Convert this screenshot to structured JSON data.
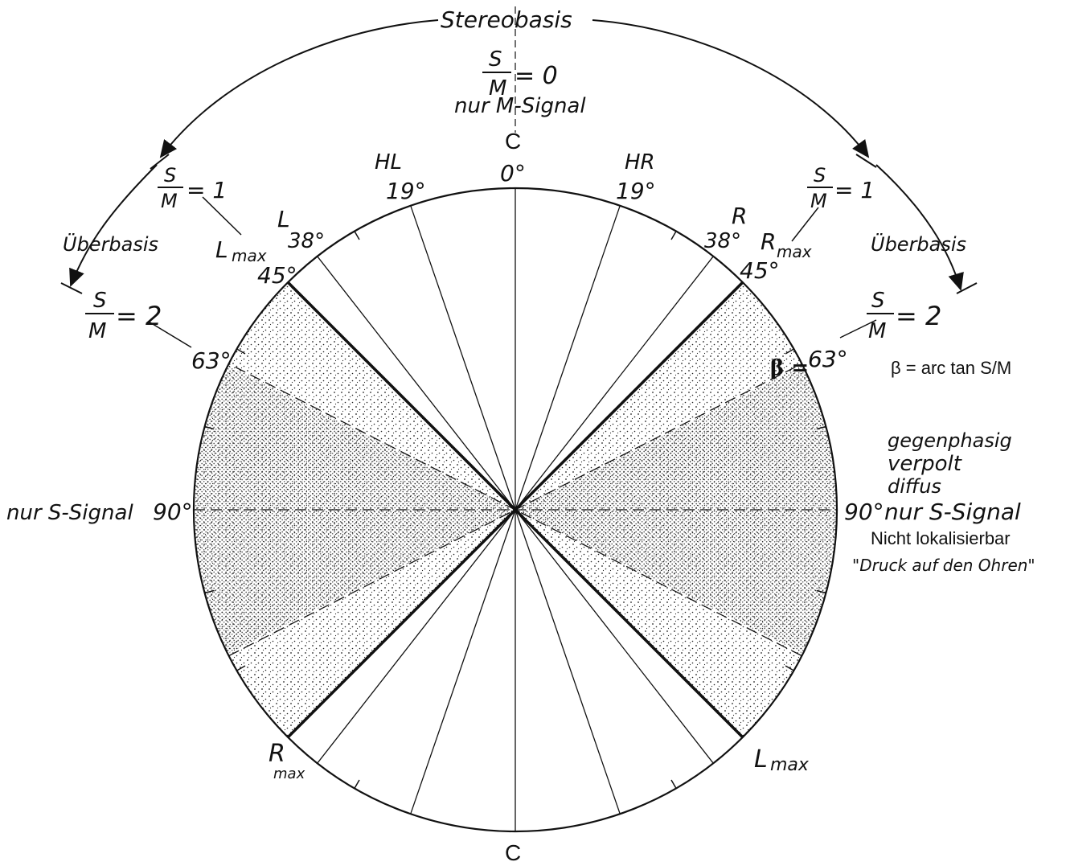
{
  "labels": {
    "stereobasis": "Stereobasis",
    "nur_m_signal": "nur M-Signal",
    "c_top": "C",
    "c_bottom": "C",
    "zero_deg": "0°",
    "hl": "HL",
    "hr": "HR",
    "deg19_left": "19°",
    "deg19_right": "19°",
    "l": "L",
    "r": "R",
    "deg38_left": "38°",
    "deg38_right": "38°",
    "deg45_left": "45°",
    "deg45_right": "45°",
    "deg63_left": "63°",
    "deg63_right": "63°",
    "deg90_left": "90°",
    "deg90_right": "90°",
    "beta_eq": "β =",
    "beta_formula": "β = arc tan S/M",
    "nur_s_signal_left": "nur S-Signal",
    "nur_s_signal_right": "nur S-Signal",
    "gegenphasig": "gegenphasig",
    "verpolt": "verpolt",
    "diffus": "diffus",
    "nicht_lokalisierbar": "Nicht lokalisierbar",
    "druck": "\"Druck auf den Ohren\"",
    "ueberbasis_left": "Überbasis",
    "ueberbasis_right": "Überbasis",
    "l_main": "L",
    "l_sub": "max",
    "r_main": "R",
    "r_sub": "max",
    "rmax_bottom_main": "R",
    "rmax_bottom_sub": "max",
    "lmax_bottom_main": "L",
    "lmax_bottom_sub": "max"
  },
  "fractions": {
    "top": {
      "num": "S",
      "den": "M",
      "value": "= 0"
    },
    "left_1": {
      "num": "S",
      "den": "M",
      "value": "= 1"
    },
    "right_1": {
      "num": "S",
      "den": "M",
      "value": "= 1"
    },
    "left_2": {
      "num": "S",
      "den": "M",
      "value": "= 2"
    },
    "right_2": {
      "num": "S",
      "den": "M",
      "value": "= 2"
    }
  },
  "angles_deg": {
    "thin_lines": [
      19,
      38
    ],
    "bold_lines": [
      45
    ],
    "dashed_lines": [
      63,
      90
    ]
  },
  "colors": {
    "ink": "#111111",
    "paper": "#ffffff"
  }
}
